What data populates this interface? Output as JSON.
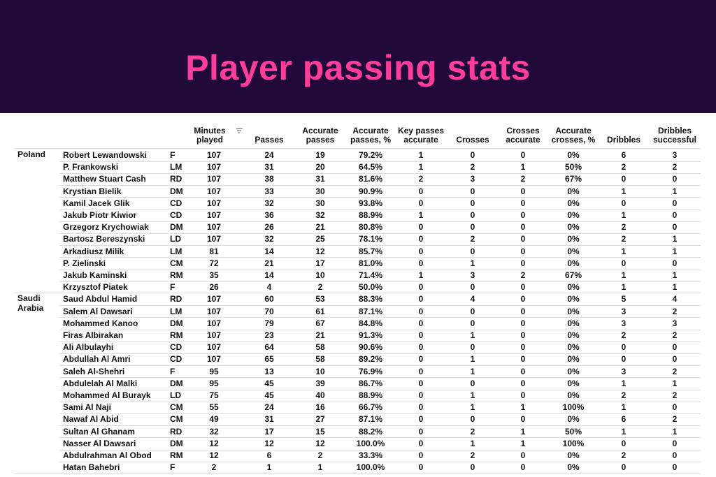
{
  "header": {
    "title": "Player passing stats"
  },
  "table": {
    "columns": [
      "Minutes played",
      "Passes",
      "Accurate passes",
      "Accurate passes, %",
      "Key passes accurate",
      "Crosses",
      "Crosses accurate",
      "Accurate crosses, %",
      "Dribbles",
      "Dribbles successful"
    ],
    "groups": [
      {
        "country": "Poland",
        "rows": [
          [
            "Robert Lewandowski",
            "F",
            "107",
            "24",
            "19",
            "79.2%",
            "1",
            "0",
            "0",
            "0%",
            "6",
            "3"
          ],
          [
            "P. Frankowski",
            "LM",
            "107",
            "31",
            "20",
            "64.5%",
            "1",
            "2",
            "1",
            "50%",
            "2",
            "2"
          ],
          [
            "Matthew Stuart Cash",
            "RD",
            "107",
            "38",
            "31",
            "81.6%",
            "2",
            "3",
            "2",
            "67%",
            "0",
            "0"
          ],
          [
            "Krystian Bielik",
            "DM",
            "107",
            "33",
            "30",
            "90.9%",
            "0",
            "0",
            "0",
            "0%",
            "1",
            "1"
          ],
          [
            "Kamil Jacek Glik",
            "CD",
            "107",
            "32",
            "30",
            "93.8%",
            "0",
            "0",
            "0",
            "0%",
            "0",
            "0"
          ],
          [
            "Jakub Piotr Kiwior",
            "CD",
            "107",
            "36",
            "32",
            "88.9%",
            "1",
            "0",
            "0",
            "0%",
            "1",
            "0"
          ],
          [
            "Grzegorz Krychowiak",
            "DM",
            "107",
            "26",
            "21",
            "80.8%",
            "0",
            "0",
            "0",
            "0%",
            "2",
            "0"
          ],
          [
            "Bartosz Bereszynski",
            "LD",
            "107",
            "32",
            "25",
            "78.1%",
            "0",
            "2",
            "0",
            "0%",
            "2",
            "1"
          ],
          [
            "Arkadiusz Milik",
            "LM",
            "81",
            "14",
            "12",
            "85.7%",
            "0",
            "0",
            "0",
            "0%",
            "1",
            "1"
          ],
          [
            "P. Zielinski",
            "CM",
            "72",
            "21",
            "17",
            "81.0%",
            "0",
            "1",
            "0",
            "0%",
            "0",
            "0"
          ],
          [
            "Jakub Kaminski",
            "RM",
            "35",
            "14",
            "10",
            "71.4%",
            "1",
            "3",
            "2",
            "67%",
            "1",
            "1"
          ],
          [
            "Krzysztof Piatek",
            "F",
            "26",
            "4",
            "2",
            "50.0%",
            "0",
            "0",
            "0",
            "0%",
            "1",
            "1"
          ]
        ]
      },
      {
        "country": "Saudi Arabia",
        "rows": [
          [
            "Saud Abdul Hamid",
            "RD",
            "107",
            "60",
            "53",
            "88.3%",
            "0",
            "4",
            "0",
            "0%",
            "5",
            "4"
          ],
          [
            "Salem Al Dawsari",
            "LM",
            "107",
            "70",
            "61",
            "87.1%",
            "0",
            "0",
            "0",
            "0%",
            "3",
            "2"
          ],
          [
            "Mohammed Kanoo",
            "DM",
            "107",
            "79",
            "67",
            "84.8%",
            "0",
            "0",
            "0",
            "0%",
            "3",
            "3"
          ],
          [
            "Firas Albirakan",
            "RM",
            "107",
            "23",
            "21",
            "91.3%",
            "0",
            "1",
            "0",
            "0%",
            "2",
            "2"
          ],
          [
            "Ali Albulayhi",
            "CD",
            "107",
            "64",
            "58",
            "90.6%",
            "0",
            "0",
            "0",
            "0%",
            "0",
            "0"
          ],
          [
            "Abdullah Al Amri",
            "CD",
            "107",
            "65",
            "58",
            "89.2%",
            "0",
            "1",
            "0",
            "0%",
            "0",
            "0"
          ],
          [
            "Saleh Al-Shehri",
            "F",
            "95",
            "13",
            "10",
            "76.9%",
            "0",
            "1",
            "0",
            "0%",
            "3",
            "2"
          ],
          [
            "Abdulelah Al Malki",
            "DM",
            "95",
            "45",
            "39",
            "86.7%",
            "0",
            "0",
            "0",
            "0%",
            "1",
            "1"
          ],
          [
            "Mohammed Al Burayk",
            "LD",
            "75",
            "45",
            "40",
            "88.9%",
            "0",
            "1",
            "0",
            "0%",
            "2",
            "2"
          ],
          [
            "Sami Al Naji",
            "CM",
            "55",
            "24",
            "16",
            "66.7%",
            "0",
            "1",
            "1",
            "100%",
            "1",
            "0"
          ],
          [
            "Nawaf Al Abid",
            "CM",
            "49",
            "31",
            "27",
            "87.1%",
            "0",
            "0",
            "0",
            "0%",
            "6",
            "2"
          ],
          [
            "Sultan Al Ghanam",
            "RD",
            "32",
            "17",
            "15",
            "88.2%",
            "0",
            "2",
            "1",
            "50%",
            "1",
            "1"
          ],
          [
            "Nasser Al Dawsari",
            "DM",
            "12",
            "12",
            "12",
            "100.0%",
            "0",
            "1",
            "1",
            "100%",
            "0",
            "0"
          ],
          [
            "Abdulrahman Al Obod",
            "RM",
            "12",
            "6",
            "2",
            "33.3%",
            "0",
            "2",
            "0",
            "0%",
            "2",
            "0"
          ],
          [
            "Hatan Bahebri",
            "F",
            "2",
            "1",
            "1",
            "100.0%",
            "0",
            "0",
            "0",
            "0%",
            "0",
            "0"
          ]
        ]
      }
    ]
  }
}
